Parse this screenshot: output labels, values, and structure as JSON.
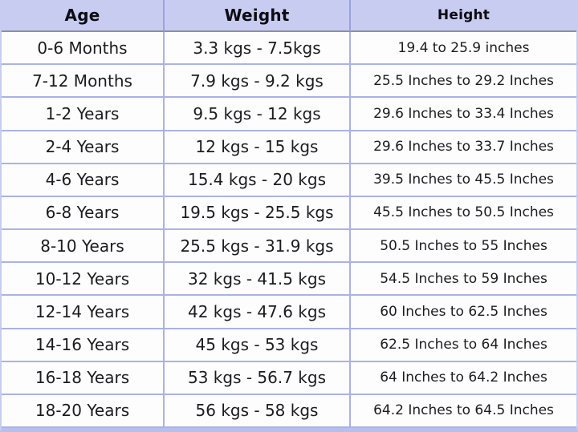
{
  "chart_data": {
    "type": "table",
    "columns": [
      "Age",
      "Weight",
      "Height"
    ],
    "rows": [
      [
        "0-6 Months",
        "3.3 kgs - 7.5kgs",
        "19.4 to 25.9 inches"
      ],
      [
        "7-12 Months",
        "7.9 kgs - 9.2 kgs",
        "25.5 Inches to 29.2 Inches"
      ],
      [
        "1-2 Years",
        "9.5 kgs - 12 kgs",
        "29.6 Inches to 33.4 Inches"
      ],
      [
        "2-4 Years",
        "12 kgs - 15 kgs",
        "29.6 Inches to 33.7 Inches"
      ],
      [
        "4-6 Years",
        "15.4 kgs - 20 kgs",
        "39.5 Inches to 45.5 Inches"
      ],
      [
        "6-8 Years",
        "19.5 kgs - 25.5 kgs",
        "45.5 Inches to 50.5 Inches"
      ],
      [
        "8-10 Years",
        "25.5 kgs - 31.9 kgs",
        "50.5 Inches to 55 Inches"
      ],
      [
        "10-12 Years",
        "32 kgs - 41.5 kgs",
        "54.5 Inches to 59 Inches"
      ],
      [
        "12-14 Years",
        "42 kgs - 47.6 kgs",
        "60 Inches to 62.5 Inches"
      ],
      [
        "14-16 Years",
        "45 kgs - 53 kgs",
        "62.5 Inches to 64 Inches"
      ],
      [
        "16-18 Years",
        "53 kgs - 56.7 kgs",
        "64 Inches to 64.2 Inches"
      ],
      [
        "18-20 Years",
        "56 kgs - 58 kgs",
        "64.2 Inches to 64.5 Inches"
      ]
    ],
    "title": "",
    "layout_hints": {
      "header_position": "top",
      "grid": "on",
      "body_text_align": "center"
    }
  },
  "colors": {
    "header_bg": "#c9ccf1",
    "grid_line": "#aab2e6",
    "header_divider": "#9aa2de",
    "header_bottom_border": "#8c90a4",
    "body_bg": "#fdfdfe",
    "text": "#1c1c20",
    "header_text": "#0c0c12"
  }
}
